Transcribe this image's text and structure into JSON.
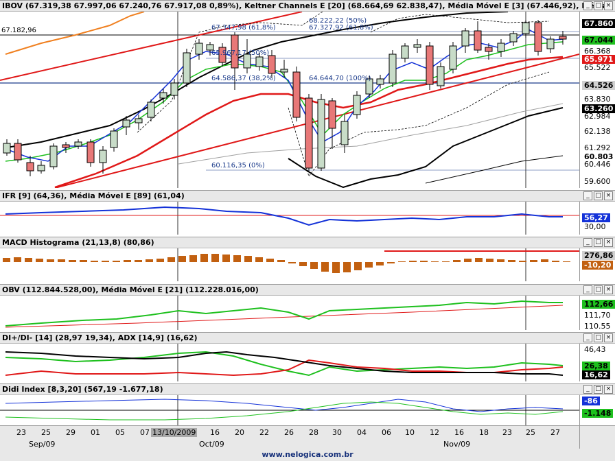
{
  "window_buttons": [
    "_",
    "□",
    "×"
  ],
  "main": {
    "title": "IBOV (67.319,38  67.997,06  67.240,76  67.917,08  0,89%), Keltner Channels E [20] (68.664,69  62.838,47), Média Móvel E [3] (67.446,92), Média",
    "top_left_price": "67.182,96",
    "fib_labels": [
      "68.222,22 (50%)",
      "67.347,98 (61,8%)",
      "67.327,92 (61,8%)",
      "65.967,17 (50%)",
      "64.586,37 (38,2%)",
      "64.644,70 (100%)",
      "60.116,35 (0%)"
    ],
    "axis_ticks": [
      "66.368",
      "65.522",
      "63.830",
      "62.984",
      "62.138",
      "61.292",
      "60.446",
      "59.600"
    ],
    "axis_tags": [
      "67.860",
      "67.044",
      "65.971",
      "64.526",
      "63.260",
      "60.803"
    ],
    "colors": {
      "up": "#c8dcc8",
      "down": "#e87878",
      "keltner": "#000000",
      "ema3": "#1432d8",
      "ema_green": "#1ec01e",
      "ema_red": "#e01818",
      "ema_orange": "#f08020"
    }
  },
  "ifr": {
    "title": "IFR [9] (64,36), Média Móvel E [89] (61,04)",
    "axis_tags": [
      "56,27"
    ],
    "axis_ticks": [
      "30,00"
    ]
  },
  "macd": {
    "title": "MACD Histograma (21,13,8) (80,86)",
    "axis_tags": [
      "276,86",
      "-10,20"
    ]
  },
  "obv": {
    "title": "OBV (112.844.528,00), Média Móvel E [21] (112.228.016,00)",
    "axis_tags": [
      "112,66"
    ],
    "axis_ticks": [
      "111,70",
      "110.55"
    ]
  },
  "di": {
    "title": "DI+/DI- [14] (28,97  19,34), ADX [14,9] (16,62)",
    "axis_tags": [
      "26,38",
      "16,62"
    ],
    "axis_ticks": [
      "46,43"
    ]
  },
  "didi": {
    "title": "Didi Index [8,3,20] (567,19  -1.677,18)",
    "axis_tags": [
      "-86",
      "-1.148"
    ]
  },
  "xaxis": {
    "days": [
      "23",
      "25",
      "29",
      "01",
      "05",
      "07",
      "13/10/2009",
      "16",
      "20",
      "22",
      "26",
      "28",
      "30",
      "04",
      "06",
      "10",
      "12",
      "16",
      "18",
      "23",
      "25",
      "27"
    ],
    "months": [
      "Sep/09",
      "Oct/09",
      "Nov/09"
    ]
  },
  "footer": "www.nelogica.com.br"
}
